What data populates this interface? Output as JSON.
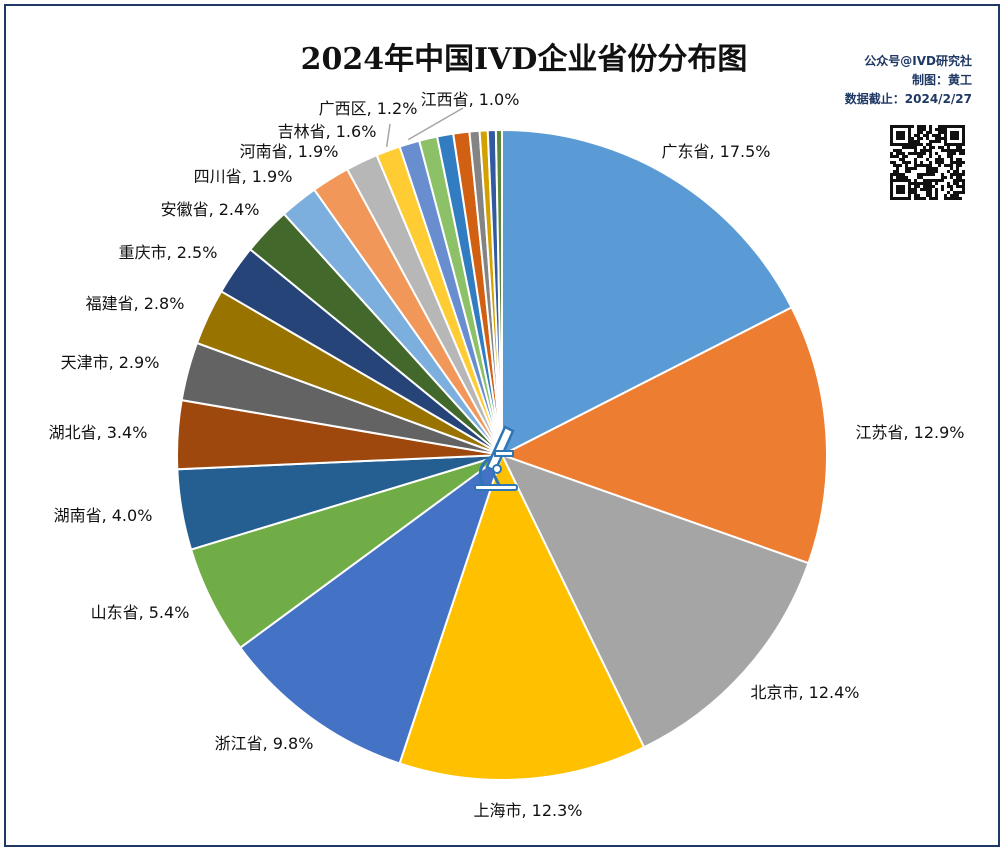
{
  "credits": {
    "line1": "公众号@IVD研究社",
    "line2": "制图：黄工",
    "line3": "数据截止：2024/2/27"
  },
  "chart_data": {
    "type": "pie",
    "title": "2024年中国IVD企业省份分布图",
    "unit": "%",
    "start_angle": "12 o'clock, clockwise",
    "slices": [
      {
        "name": "广东省",
        "value": 17.5,
        "color": "#5B9BD5"
      },
      {
        "name": "江苏省",
        "value": 12.9,
        "color": "#ED7D31"
      },
      {
        "name": "北京市",
        "value": 12.4,
        "color": "#A5A5A5"
      },
      {
        "name": "上海市",
        "value": 12.3,
        "color": "#FFC000"
      },
      {
        "name": "浙江省",
        "value": 9.8,
        "color": "#4472C4"
      },
      {
        "name": "山东省",
        "value": 5.4,
        "color": "#70AD47"
      },
      {
        "name": "湖南省",
        "value": 4.0,
        "color": "#255E91"
      },
      {
        "name": "湖北省",
        "value": 3.4,
        "color": "#9E480E"
      },
      {
        "name": "天津市",
        "value": 2.9,
        "color": "#636363"
      },
      {
        "name": "福建省",
        "value": 2.8,
        "color": "#997300"
      },
      {
        "name": "重庆市",
        "value": 2.5,
        "color": "#264478"
      },
      {
        "name": "安徽省",
        "value": 2.4,
        "color": "#43682B"
      },
      {
        "name": "四川省",
        "value": 1.9,
        "color": "#7CAFDD"
      },
      {
        "name": "河南省",
        "value": 1.9,
        "color": "#F1975A"
      },
      {
        "name": "吉林省",
        "value": 1.6,
        "color": "#B7B7B7"
      },
      {
        "name": "广西区",
        "value": 1.2,
        "color": "#FFCD33"
      },
      {
        "name": "江西省",
        "value": 1.0,
        "color": "#698ED0"
      },
      {
        "name": "",
        "value": 0.9,
        "color": "#8CC168"
      },
      {
        "name": "",
        "value": 0.8,
        "color": "#327DC2"
      },
      {
        "name": "",
        "value": 0.8,
        "color": "#D26012"
      },
      {
        "name": "",
        "value": 0.5,
        "color": "#848484"
      },
      {
        "name": "",
        "value": 0.4,
        "color": "#D4A000"
      },
      {
        "name": "",
        "value": 0.4,
        "color": "#335AA1"
      },
      {
        "name": "",
        "value": 0.3,
        "color": "#5A8A39"
      }
    ]
  }
}
